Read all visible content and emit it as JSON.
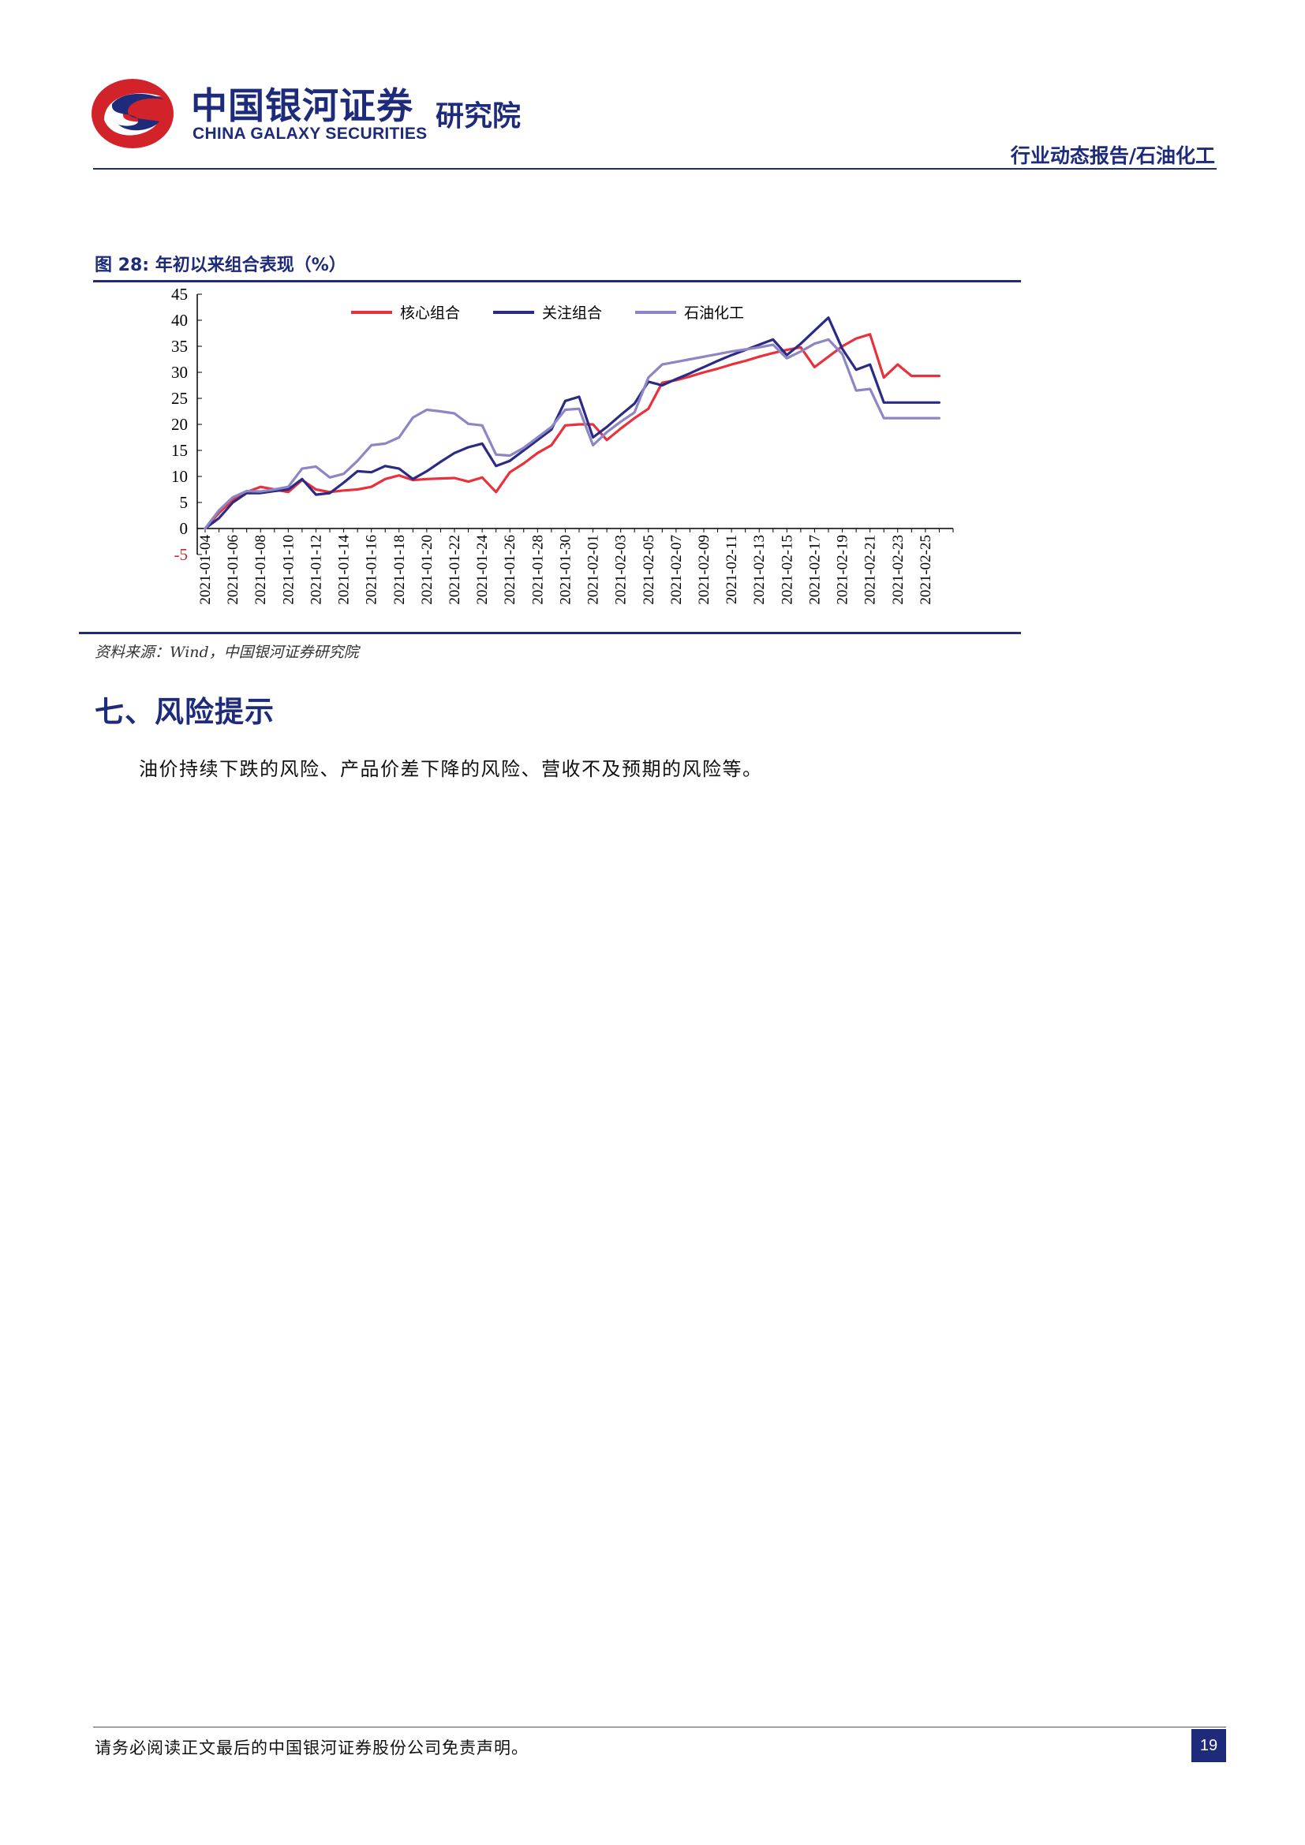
{
  "header": {
    "logo_cn": "中国银河证券",
    "logo_en": "CHINA GALAXY SECURITIES",
    "logo_institute": "研究院",
    "report_type": "行业动态报告/石油化工",
    "brand_colors": {
      "navy": "#1d2b7a",
      "red": "#d2232a"
    }
  },
  "figure": {
    "caption": "图 28:  年初以来组合表现（%）",
    "source": "资料来源：Wind，中国银河证券研究院"
  },
  "chart_data": {
    "type": "line",
    "title": "年初以来组合表现（%）",
    "xlabel": "",
    "ylabel": "",
    "ylim": [
      -5,
      45
    ],
    "yticks": [
      "45",
      "40",
      "35",
      "30",
      "25",
      "20",
      "15",
      "10",
      "5",
      "0",
      "-5"
    ],
    "x_tick_labels": [
      "2021-01-04",
      "2021-01-06",
      "2021-01-08",
      "2021-01-10",
      "2021-01-12",
      "2021-01-14",
      "2021-01-16",
      "2021-01-18",
      "2021-01-20",
      "2021-01-22",
      "2021-01-24",
      "2021-01-26",
      "2021-01-28",
      "2021-01-30",
      "2021-02-01",
      "2021-02-03",
      "2021-02-05",
      "2021-02-07",
      "2021-02-09",
      "2021-02-11",
      "2021-02-13",
      "2021-02-15",
      "2021-02-17",
      "2021-02-19",
      "2021-02-21",
      "2021-02-23",
      "2021-02-25"
    ],
    "x_domain": [
      0,
      54
    ],
    "legend_position": "top",
    "series": [
      {
        "name": "核心组合",
        "color": "#e8313b",
        "x": [
          0,
          1,
          2,
          3,
          4,
          5,
          6,
          7,
          8,
          9,
          10,
          11,
          12,
          13,
          14,
          15,
          16,
          17,
          18,
          19,
          20,
          21,
          22,
          23,
          24,
          25,
          26,
          27,
          28,
          29,
          30,
          31,
          32,
          33,
          34,
          35,
          36,
          37,
          38,
          39,
          40,
          41,
          42,
          43,
          44,
          45,
          46,
          47,
          48,
          49,
          50,
          51,
          52,
          53
        ],
        "values": [
          0,
          3,
          5.5,
          7,
          8,
          7.5,
          7,
          9.3,
          7.5,
          7,
          7.3,
          7.5,
          8,
          9.5,
          10.2,
          9.3,
          9.5,
          9.6,
          9.7,
          9,
          9.8,
          7,
          10.8,
          12.5,
          14.5,
          16,
          19.8,
          20,
          20,
          17,
          19.2,
          21.2,
          23,
          28,
          28.5,
          29.2,
          30,
          30.7,
          31.5,
          32.2,
          33,
          33.7,
          34.3,
          34.8,
          31,
          33,
          35,
          36.5,
          37.3,
          29,
          31.5,
          29.3,
          29.3,
          29.3
        ]
      },
      {
        "name": "关注组合",
        "color": "#2b2a85",
        "x": [
          0,
          1,
          2,
          3,
          4,
          5,
          6,
          7,
          8,
          9,
          10,
          11,
          12,
          13,
          14,
          15,
          16,
          17,
          18,
          19,
          20,
          21,
          22,
          23,
          24,
          25,
          26,
          27,
          28,
          29,
          30,
          31,
          32,
          33,
          34,
          35,
          36,
          37,
          38,
          39,
          40,
          41,
          42,
          43,
          44,
          45,
          46,
          47,
          48,
          49,
          50,
          51,
          52,
          53
        ],
        "values": [
          0,
          2,
          5,
          6.8,
          6.8,
          7.2,
          7.5,
          9.5,
          6.5,
          6.8,
          8.8,
          11,
          10.8,
          12,
          11.5,
          9.5,
          11,
          12.8,
          14.5,
          15.6,
          16.3,
          12,
          13,
          15,
          17,
          19,
          24.5,
          25.3,
          17.5,
          19.5,
          21.8,
          24,
          28.2,
          27.5,
          28.7,
          29.8,
          31,
          32.2,
          33.3,
          34.3,
          35.3,
          36.3,
          33.3,
          35.5,
          38,
          40.5,
          34.5,
          30.5,
          31.5,
          24.2,
          24.2,
          24.2,
          24.2,
          24.2
        ]
      },
      {
        "name": "石油化工",
        "color": "#8d86c5",
        "x": [
          0,
          1,
          2,
          3,
          4,
          5,
          6,
          7,
          8,
          9,
          10,
          11,
          12,
          13,
          14,
          15,
          16,
          17,
          18,
          19,
          20,
          21,
          22,
          23,
          24,
          25,
          26,
          27,
          28,
          29,
          30,
          31,
          32,
          33,
          34,
          35,
          36,
          37,
          38,
          39,
          40,
          41,
          42,
          43,
          44,
          45,
          46,
          47,
          48,
          49,
          50,
          51,
          52,
          53
        ],
        "values": [
          0,
          3.5,
          6,
          7.2,
          7.1,
          7.5,
          8,
          11.5,
          11.9,
          9.8,
          10.5,
          13,
          16,
          16.3,
          17.5,
          21.3,
          22.8,
          22.5,
          22.1,
          20.1,
          19.8,
          14.2,
          14,
          15.5,
          17.5,
          19.5,
          22.8,
          23,
          16,
          18.5,
          20.5,
          22.3,
          29,
          31.5,
          32,
          32.5,
          33,
          33.5,
          34,
          34.4,
          34.8,
          35.3,
          32.7,
          34,
          35.5,
          36.3,
          33.5,
          26.5,
          26.8,
          21.2,
          21.2,
          21.2,
          21.2,
          21.2
        ]
      }
    ]
  },
  "section": {
    "title": "七、风险提示",
    "body": "油价持续下跌的风险、产品价差下降的风险、营收不及预期的风险等。"
  },
  "footer": {
    "disclaimer": "请务必阅读正文最后的中国银河证券股份公司免责声明。",
    "page_number": "19"
  }
}
